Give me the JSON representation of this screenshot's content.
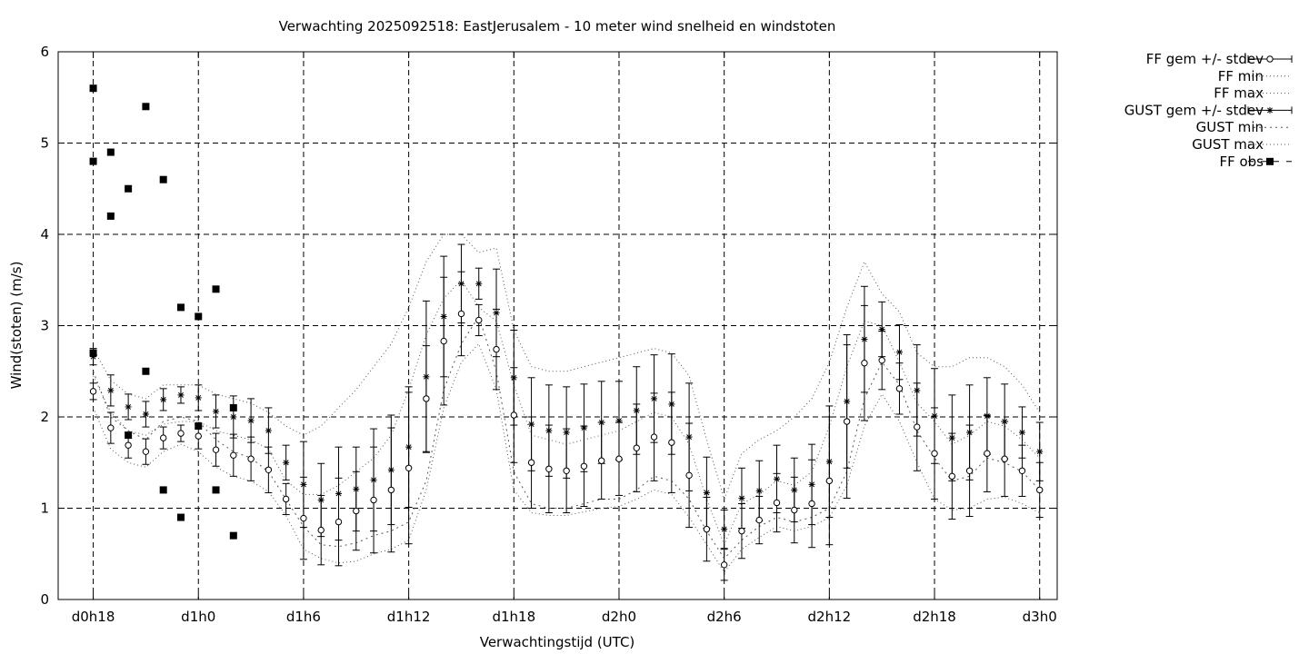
{
  "chart_data": {
    "type": "line",
    "title": "Verwachting 2025092518: EastJerusalem - 10 meter wind snelheid en windstoten",
    "xlabel": "Verwachtingstijd (UTC)",
    "ylabel": "Wind(stoten) (m/s)",
    "x_unit": "hours since d0h18",
    "xlim": [
      -2,
      55
    ],
    "ylim": [
      0,
      6
    ],
    "yticks": [
      0,
      1,
      2,
      3,
      4,
      5,
      6
    ],
    "xticks": [
      {
        "x": 0,
        "label": "d0h18"
      },
      {
        "x": 6,
        "label": "d1h0"
      },
      {
        "x": 12,
        "label": "d1h6"
      },
      {
        "x": 18,
        "label": "d1h12"
      },
      {
        "x": 24,
        "label": "d1h18"
      },
      {
        "x": 30,
        "label": "d2h0"
      },
      {
        "x": 36,
        "label": "d2h6"
      },
      {
        "x": 42,
        "label": "d2h12"
      },
      {
        "x": 48,
        "label": "d2h18"
      },
      {
        "x": 54,
        "label": "d3h0"
      }
    ],
    "grid": true,
    "legend_position": "outside-right",
    "legend": [
      {
        "key": "ff_mean",
        "label": "FF gem +/- stdev"
      },
      {
        "key": "ff_min",
        "label": "FF min"
      },
      {
        "key": "ff_max",
        "label": "FF max"
      },
      {
        "key": "gust_mean",
        "label": "GUST gem +/- stdev"
      },
      {
        "key": "gust_min",
        "label": "GUST min"
      },
      {
        "key": "gust_max",
        "label": "GUST max"
      },
      {
        "key": "ff_obs",
        "label": "FF obs"
      }
    ],
    "x": [
      0,
      1,
      2,
      3,
      4,
      5,
      6,
      7,
      8,
      9,
      10,
      11,
      12,
      13,
      14,
      15,
      16,
      17,
      18,
      19,
      20,
      21,
      22,
      23,
      24,
      25,
      26,
      27,
      28,
      29,
      30,
      31,
      32,
      33,
      34,
      35,
      36,
      37,
      38,
      39,
      40,
      41,
      42,
      43,
      44,
      45,
      46,
      47,
      48,
      49,
      50,
      51,
      52,
      53,
      54
    ],
    "ff_mean": [
      2.28,
      1.88,
      1.69,
      1.62,
      1.77,
      1.82,
      1.79,
      1.64,
      1.58,
      1.54,
      1.42,
      1.1,
      0.89,
      0.76,
      0.85,
      0.97,
      1.09,
      1.2,
      1.44,
      2.2,
      2.83,
      3.13,
      3.06,
      2.74,
      2.02,
      1.5,
      1.43,
      1.41,
      1.46,
      1.52,
      1.54,
      1.66,
      1.78,
      1.72,
      1.36,
      0.77,
      0.38,
      0.75,
      0.87,
      1.06,
      0.98,
      1.05,
      1.3,
      1.95,
      2.59,
      2.62,
      2.31,
      1.89,
      1.6,
      1.35,
      1.41,
      1.6,
      1.54,
      1.41,
      1.2
    ],
    "ff_sd": [
      0.09,
      0.17,
      0.14,
      0.14,
      0.12,
      0.09,
      0.14,
      0.18,
      0.23,
      0.24,
      0.25,
      0.17,
      0.45,
      0.38,
      0.48,
      0.43,
      0.58,
      0.68,
      0.83,
      0.58,
      0.7,
      0.46,
      0.17,
      0.44,
      0.52,
      0.5,
      0.48,
      0.46,
      0.44,
      0.42,
      0.4,
      0.48,
      0.48,
      0.55,
      0.57,
      0.35,
      0.17,
      0.3,
      0.26,
      0.32,
      0.36,
      0.48,
      0.7,
      0.84,
      0.63,
      0.32,
      0.28,
      0.48,
      0.5,
      0.47,
      0.5,
      0.42,
      0.41,
      0.28,
      0.3
    ],
    "ff_min": [
      2.1,
      1.65,
      1.5,
      1.45,
      1.62,
      1.7,
      1.62,
      1.45,
      1.35,
      1.3,
      1.18,
      0.92,
      0.55,
      0.45,
      0.4,
      0.42,
      0.5,
      0.55,
      0.65,
      1.2,
      2.1,
      2.6,
      2.8,
      2.3,
      1.2,
      0.95,
      0.92,
      0.92,
      0.96,
      1.0,
      1.02,
      1.1,
      1.2,
      1.15,
      0.9,
      0.6,
      0.3,
      0.55,
      0.68,
      0.8,
      0.75,
      0.8,
      0.9,
      1.25,
      1.9,
      2.25,
      1.95,
      1.5,
      1.1,
      0.98,
      1.0,
      1.1,
      1.12,
      1.05,
      0.95
    ],
    "ff_max": [
      2.45,
      2.05,
      1.85,
      1.8,
      1.92,
      1.95,
      1.95,
      1.85,
      1.8,
      1.75,
      1.65,
      1.3,
      1.15,
      1.15,
      1.25,
      1.4,
      1.55,
      1.8,
      2.3,
      2.9,
      3.3,
      3.5,
      3.2,
      3.05,
      2.35,
      1.8,
      1.75,
      1.7,
      1.75,
      1.8,
      1.85,
      1.95,
      2.05,
      2.0,
      1.7,
      1.1,
      0.6,
      1.05,
      1.15,
      1.3,
      1.25,
      1.4,
      1.9,
      2.55,
      3.05,
      3.0,
      2.6,
      2.15,
      1.95,
      1.7,
      1.8,
      1.95,
      1.9,
      1.75,
      1.55
    ],
    "gust_mean": [
      2.66,
      2.29,
      2.11,
      2.03,
      2.19,
      2.24,
      2.21,
      2.06,
      2.0,
      1.96,
      1.85,
      1.5,
      1.26,
      1.09,
      1.16,
      1.21,
      1.31,
      1.42,
      1.67,
      2.44,
      3.1,
      3.46,
      3.46,
      3.14,
      2.43,
      1.92,
      1.85,
      1.83,
      1.88,
      1.94,
      1.96,
      2.07,
      2.2,
      2.14,
      1.78,
      1.17,
      0.77,
      1.11,
      1.19,
      1.32,
      1.2,
      1.26,
      1.51,
      2.17,
      2.85,
      2.96,
      2.71,
      2.29,
      2.01,
      1.77,
      1.83,
      2.01,
      1.95,
      1.83,
      1.62
    ],
    "gust_sd": [
      0.09,
      0.17,
      0.14,
      0.14,
      0.12,
      0.09,
      0.14,
      0.18,
      0.23,
      0.24,
      0.25,
      0.19,
      0.47,
      0.4,
      0.51,
      0.46,
      0.56,
      0.6,
      0.66,
      0.83,
      0.66,
      0.43,
      0.17,
      0.48,
      0.52,
      0.51,
      0.5,
      0.5,
      0.48,
      0.45,
      0.43,
      0.48,
      0.48,
      0.55,
      0.59,
      0.39,
      0.21,
      0.33,
      0.33,
      0.37,
      0.35,
      0.44,
      0.61,
      0.73,
      0.58,
      0.3,
      0.3,
      0.5,
      0.52,
      0.47,
      0.52,
      0.42,
      0.41,
      0.28,
      0.32
    ],
    "gust_min": [
      2.5,
      2.0,
      1.85,
      1.75,
      1.95,
      2.0,
      1.95,
      1.75,
      1.62,
      1.55,
      1.4,
      1.1,
      0.8,
      0.6,
      0.58,
      0.62,
      0.7,
      0.75,
      0.85,
      1.3,
      2.3,
      2.8,
      3.1,
      2.5,
      1.4,
      1.05,
      1.0,
      1.0,
      1.05,
      1.1,
      1.1,
      1.2,
      1.35,
      1.3,
      1.1,
      0.75,
      0.45,
      0.65,
      0.8,
      0.9,
      0.85,
      0.9,
      1.0,
      1.4,
      2.2,
      2.6,
      2.35,
      1.85,
      1.55,
      1.3,
      1.35,
      1.55,
      1.5,
      1.4,
      1.2
    ],
    "gust_max": [
      2.75,
      2.4,
      2.25,
      2.2,
      2.35,
      2.35,
      2.35,
      2.25,
      2.2,
      2.15,
      2.05,
      1.9,
      1.8,
      1.9,
      2.1,
      2.3,
      2.55,
      2.8,
      3.2,
      3.7,
      4.0,
      4.0,
      3.8,
      3.85,
      2.95,
      2.55,
      2.5,
      2.5,
      2.55,
      2.6,
      2.65,
      2.7,
      2.75,
      2.7,
      2.45,
      1.75,
      1.1,
      1.6,
      1.75,
      1.85,
      2.0,
      2.2,
      2.6,
      3.2,
      3.7,
      3.35,
      3.15,
      2.7,
      2.55,
      2.55,
      2.65,
      2.65,
      2.55,
      2.35,
      2.05
    ],
    "ff_obs": [
      [
        0,
        5.6
      ],
      [
        0,
        4.8
      ],
      [
        0,
        2.7
      ],
      [
        1,
        4.9
      ],
      [
        1,
        4.2
      ],
      [
        2,
        4.5
      ],
      [
        2,
        1.8
      ],
      [
        3,
        5.4
      ],
      [
        3,
        2.5
      ],
      [
        4,
        4.6
      ],
      [
        4,
        1.2
      ],
      [
        5,
        3.2
      ],
      [
        5,
        0.9
      ],
      [
        6,
        3.1
      ],
      [
        6,
        1.9
      ],
      [
        7,
        3.4
      ],
      [
        7,
        1.2
      ],
      [
        8,
        2.1
      ],
      [
        8,
        0.7
      ]
    ]
  }
}
